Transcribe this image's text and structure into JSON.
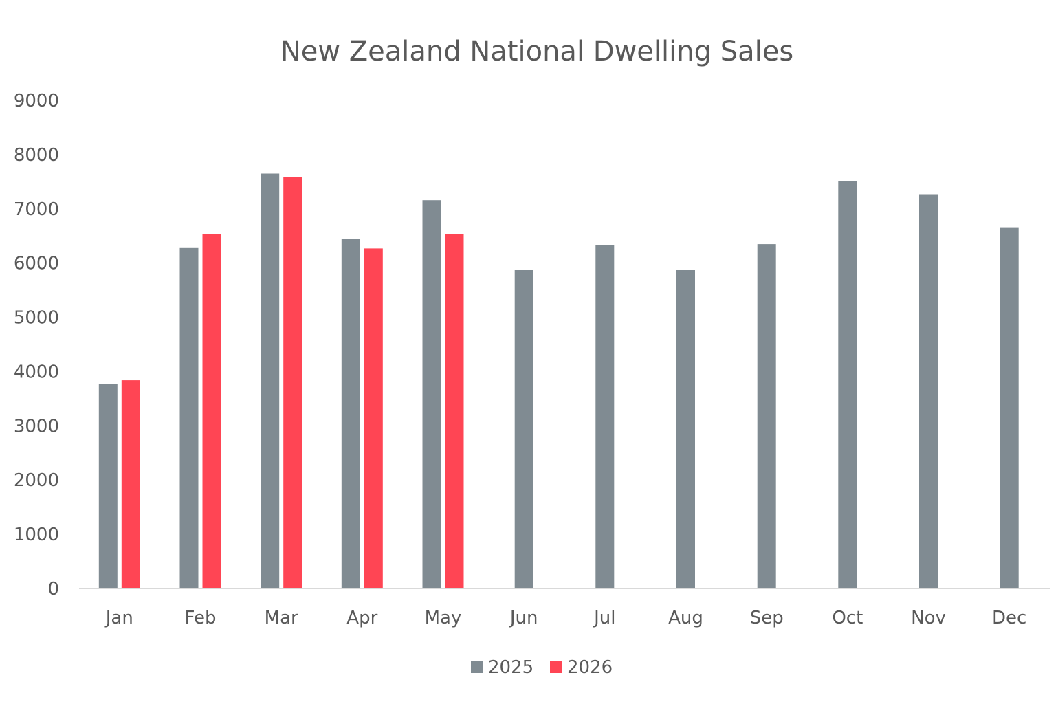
{
  "chart_data": {
    "type": "bar",
    "title": "New Zealand National Dwelling Sales",
    "xlabel": "",
    "ylabel": "",
    "categories": [
      "Jan",
      "Feb",
      "Mar",
      "Apr",
      "May",
      "Jun",
      "Jul",
      "Aug",
      "Sep",
      "Oct",
      "Nov",
      "Dec"
    ],
    "series": [
      {
        "name": "2025",
        "color": "#808b92",
        "values": [
          3770,
          6290,
          7650,
          6440,
          7160,
          5870,
          6330,
          5870,
          6350,
          7510,
          7270,
          6660
        ]
      },
      {
        "name": "2026",
        "color": "#ff4554",
        "values": [
          3840,
          6530,
          7580,
          6270,
          6530,
          null,
          null,
          null,
          null,
          null,
          null,
          null
        ]
      }
    ],
    "ylim": [
      0,
      9000
    ],
    "yticks": [
      "0",
      "1000",
      "2000",
      "3000",
      "4000",
      "5000",
      "6000",
      "7000",
      "8000",
      "9000"
    ],
    "grid": false,
    "legend_position": "bottom-center",
    "axis_color": "#d9d9d9",
    "text_color": "#595959"
  }
}
